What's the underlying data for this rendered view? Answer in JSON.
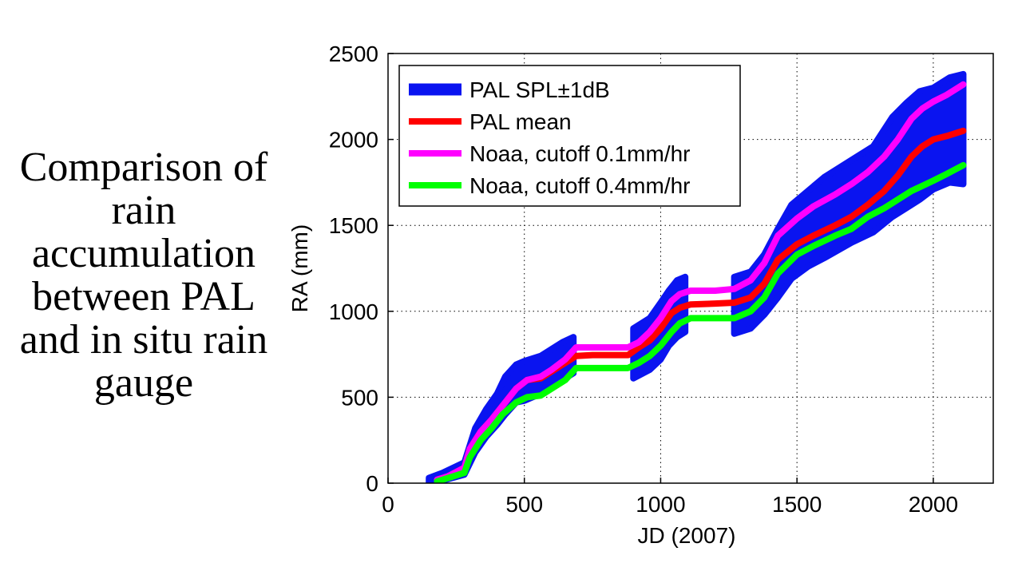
{
  "slide": {
    "title": "Comparison of rain accumulation between PAL and in situ rain gauge"
  },
  "colors": {
    "band": "#0a14f0",
    "pal_mean": "#ff0000",
    "noaa_01": "#ff00ff",
    "noaa_04": "#00ff00"
  },
  "chart_data": {
    "type": "line",
    "xlabel": "JD (2007)",
    "ylabel": "RA (mm)",
    "xlim": [
      0,
      2220
    ],
    "ylim": [
      0,
      2500
    ],
    "xticks": [
      0,
      500,
      1000,
      1500,
      2000
    ],
    "yticks": [
      0,
      500,
      1000,
      1500,
      2000,
      2500
    ],
    "grid": "dotted",
    "legend_position": "top-left",
    "legend": [
      {
        "label": "PAL SPL±1dB",
        "series": "band"
      },
      {
        "label": "PAL mean",
        "series": "pal_mean"
      },
      {
        "label": "Noaa, cutoff 0.1mm/hr",
        "series": "noaa_01"
      },
      {
        "label": "Noaa, cutoff 0.4mm/hr",
        "series": "noaa_04"
      }
    ],
    "band_segments": [
      {
        "x": [
          150,
          200,
          280,
          320,
          360,
          400,
          430,
          470,
          500,
          560,
          600,
          640,
          680
        ],
        "upper": [
          30,
          60,
          120,
          320,
          430,
          520,
          620,
          690,
          710,
          740,
          780,
          820,
          850
        ],
        "lower": [
          0,
          15,
          50,
          180,
          270,
          340,
          400,
          470,
          480,
          520,
          560,
          600,
          640
        ]
      },
      {
        "x": [
          900,
          960,
          1000,
          1030,
          1060,
          1090
        ],
        "upper": [
          900,
          960,
          1050,
          1120,
          1180,
          1200
        ],
        "lower": [
          610,
          660,
          720,
          800,
          850,
          880
        ]
      },
      {
        "x": [
          1270,
          1330,
          1380,
          1430,
          1480,
          1540,
          1600,
          1700,
          1780,
          1850,
          1900,
          1950,
          2000,
          2060,
          2110
        ],
        "upper": [
          1200,
          1230,
          1330,
          1480,
          1620,
          1700,
          1780,
          1880,
          1960,
          2130,
          2210,
          2280,
          2300,
          2360,
          2380
        ],
        "lower": [
          870,
          900,
          980,
          1080,
          1190,
          1260,
          1310,
          1400,
          1460,
          1550,
          1600,
          1650,
          1710,
          1750,
          1740
        ]
      }
    ],
    "series": [
      {
        "name": "PAL mean",
        "color": "#ff0000",
        "x": [
          180,
          220,
          280,
          300,
          340,
          380,
          420,
          470,
          510,
          560,
          600,
          650,
          690,
          750,
          820,
          880,
          920,
          960,
          1000,
          1040,
          1070,
          1110,
          1200,
          1270,
          1330,
          1380,
          1430,
          1500,
          1560,
          1640,
          1700,
          1760,
          1820,
          1870,
          1920,
          1960,
          2000,
          2050,
          2110
        ],
        "y": [
          20,
          40,
          90,
          200,
          300,
          370,
          450,
          550,
          600,
          610,
          650,
          700,
          740,
          745,
          745,
          745,
          790,
          830,
          900,
          990,
          1020,
          1040,
          1045,
          1050,
          1080,
          1160,
          1300,
          1390,
          1440,
          1500,
          1550,
          1620,
          1700,
          1790,
          1900,
          1960,
          2000,
          2020,
          2050
        ]
      },
      {
        "name": "Noaa, cutoff 0.1mm/hr",
        "color": "#ff00ff",
        "x": [
          180,
          220,
          280,
          300,
          340,
          380,
          420,
          470,
          510,
          560,
          600,
          650,
          690,
          750,
          820,
          880,
          920,
          960,
          1000,
          1040,
          1070,
          1110,
          1200,
          1270,
          1330,
          1380,
          1430,
          1500,
          1560,
          1640,
          1700,
          1760,
          1820,
          1870,
          1920,
          1960,
          2000,
          2050,
          2110
        ],
        "y": [
          20,
          40,
          90,
          200,
          300,
          370,
          450,
          550,
          600,
          620,
          660,
          720,
          790,
          790,
          790,
          790,
          820,
          880,
          960,
          1060,
          1100,
          1120,
          1120,
          1130,
          1180,
          1280,
          1440,
          1540,
          1610,
          1680,
          1740,
          1810,
          1900,
          2000,
          2120,
          2180,
          2220,
          2260,
          2320
        ]
      },
      {
        "name": "Noaa, cutoff 0.4mm/hr",
        "color": "#00ff00",
        "x": [
          180,
          220,
          280,
          300,
          340,
          380,
          420,
          470,
          510,
          560,
          600,
          650,
          690,
          750,
          820,
          880,
          920,
          960,
          1000,
          1040,
          1070,
          1110,
          1200,
          1270,
          1330,
          1380,
          1430,
          1500,
          1560,
          1640,
          1700,
          1760,
          1820,
          1870,
          1920,
          1960,
          2000,
          2050,
          2110
        ],
        "y": [
          10,
          30,
          60,
          150,
          250,
          320,
          400,
          470,
          500,
          510,
          550,
          600,
          670,
          670,
          670,
          670,
          700,
          740,
          800,
          880,
          930,
          960,
          960,
          960,
          1000,
          1080,
          1220,
          1330,
          1380,
          1440,
          1480,
          1550,
          1600,
          1650,
          1700,
          1730,
          1760,
          1800,
          1850
        ]
      }
    ]
  }
}
